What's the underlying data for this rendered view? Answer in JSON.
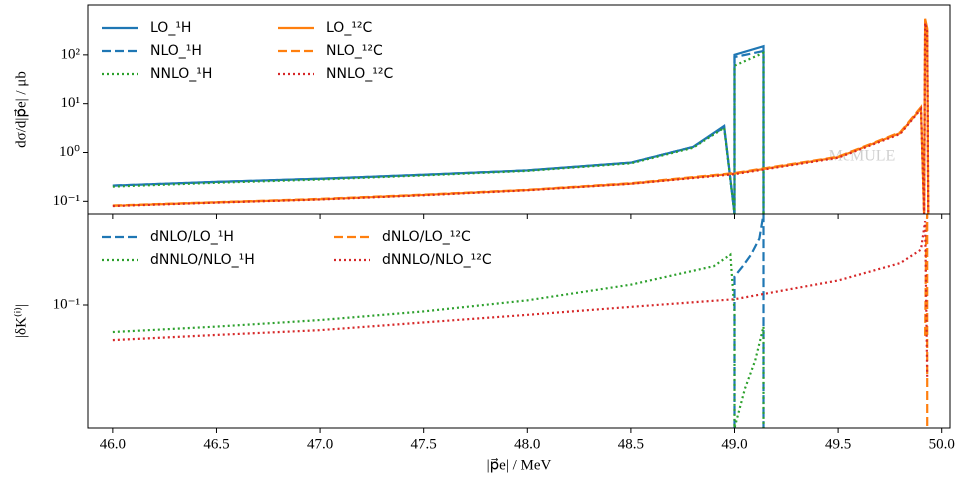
{
  "chart_data": [
    {
      "type": "line",
      "ylabel": "dσ/d|p⃗e| / μb",
      "log_y": true,
      "legend": "upper left",
      "watermark": "McMULE",
      "xlim": [
        45.88,
        50.04
      ],
      "xticks": [
        46,
        46.5,
        47,
        47.5,
        48,
        48.5,
        49,
        49.5,
        50
      ],
      "ylim": [
        0.055,
        1050
      ],
      "yticks": [
        {
          "value": 0.1,
          "label": "10⁻¹"
        },
        {
          "value": 1,
          "label": "10⁰"
        },
        {
          "value": 10,
          "label": "10¹"
        },
        {
          "value": 100,
          "label": "10²"
        }
      ],
      "series": [
        {
          "name": "LO_¹H",
          "color": "#1f77b4",
          "dash": "solid",
          "x": [
            46,
            46.5,
            47,
            47.5,
            48,
            48.5,
            48.8,
            48.95,
            49.0,
            49.0,
            49.14,
            49.14
          ],
          "values": [
            0.21,
            0.25,
            0.29,
            0.35,
            0.43,
            0.62,
            1.3,
            3.5,
            0.055,
            100,
            150,
            0.055
          ]
        },
        {
          "name": "NLO_¹H",
          "color": "#1f77b4",
          "dash": "dashed",
          "x": [
            46,
            46.5,
            47,
            47.5,
            48,
            48.5,
            48.8,
            48.95,
            49.0,
            49.0,
            49.14,
            49.14
          ],
          "values": [
            0.21,
            0.25,
            0.29,
            0.35,
            0.43,
            0.62,
            1.3,
            3.3,
            0.055,
            90,
            120,
            0.055
          ]
        },
        {
          "name": "NNLO_¹H",
          "color": "#2ca02c",
          "dash": "dotted",
          "x": [
            46,
            46.5,
            47,
            47.5,
            48,
            48.5,
            48.8,
            48.95,
            49.0,
            49.0,
            49.14,
            49.14
          ],
          "values": [
            0.2,
            0.24,
            0.28,
            0.34,
            0.42,
            0.6,
            1.25,
            3.2,
            0.055,
            60,
            110,
            0.055
          ]
        },
        {
          "name": "LO_¹²C",
          "color": "#ff7f0e",
          "dash": "solid",
          "x": [
            46,
            46.5,
            47,
            47.5,
            48,
            48.5,
            49,
            49.5,
            49.8,
            49.9,
            49.915,
            49.92,
            49.93,
            49.935
          ],
          "values": [
            0.081,
            0.095,
            0.11,
            0.135,
            0.17,
            0.23,
            0.37,
            0.8,
            2.5,
            8,
            0.055,
            550,
            350,
            0.055
          ]
        },
        {
          "name": "NLO_¹²C",
          "color": "#ff7f0e",
          "dash": "dashed",
          "x": [
            46,
            46.5,
            47,
            47.5,
            48,
            48.5,
            49,
            49.5,
            49.8,
            49.9,
            49.915,
            49.92,
            49.93,
            49.935
          ],
          "values": [
            0.082,
            0.096,
            0.112,
            0.137,
            0.172,
            0.235,
            0.38,
            0.82,
            2.6,
            8.5,
            0.055,
            500,
            320,
            0.055
          ]
        },
        {
          "name": "NNLO_¹²C",
          "color": "#d62728",
          "dash": "dotted",
          "x": [
            46,
            46.5,
            47,
            47.5,
            48,
            48.5,
            49,
            49.5,
            49.8,
            49.9,
            49.915,
            49.92,
            49.93,
            49.935
          ],
          "values": [
            0.08,
            0.094,
            0.109,
            0.133,
            0.168,
            0.228,
            0.36,
            0.78,
            2.4,
            7.8,
            0.055,
            450,
            300,
            0.055
          ]
        }
      ]
    },
    {
      "type": "line",
      "ylabel": "|δK⁽ⁱ⁾|",
      "xlabel": "|p⃗e| / MeV",
      "log_y": true,
      "legend": "upper left",
      "xlim": [
        45.88,
        50.04
      ],
      "xticks": [
        {
          "value": 46,
          "label": "46.0"
        },
        {
          "value": 46.5,
          "label": "46.5"
        },
        {
          "value": 47,
          "label": "47.0"
        },
        {
          "value": 47.5,
          "label": "47.5"
        },
        {
          "value": 48,
          "label": "48.0"
        },
        {
          "value": 48.5,
          "label": "48.5"
        },
        {
          "value": 49,
          "label": "49.0"
        },
        {
          "value": 49.5,
          "label": "49.5"
        },
        {
          "value": 50,
          "label": "50.0"
        }
      ],
      "ylim": [
        0.0131,
        0.45
      ],
      "yticks": [
        {
          "value": 0.1,
          "label": "10⁻¹"
        }
      ],
      "series": [
        {
          "name": "dNLO/LO_¹H",
          "color": "#1f77b4",
          "dash": "dashed",
          "x": [
            49.0,
            49.0,
            49.04,
            49.08,
            49.12,
            49.14,
            49.14
          ],
          "values": [
            0.0131,
            0.16,
            0.19,
            0.23,
            0.3,
            0.45,
            0.0131
          ]
        },
        {
          "name": "dNNLO/NLO_¹H",
          "color": "#2ca02c",
          "dash": "dotted",
          "x": [
            46,
            46.5,
            47,
            47.5,
            48,
            48.5,
            48.9,
            48.98,
            49.0,
            49.0,
            49.05,
            49.1,
            49.14,
            49.14
          ],
          "values": [
            0.064,
            0.07,
            0.078,
            0.09,
            0.108,
            0.14,
            0.19,
            0.23,
            0.09,
            0.0131,
            0.025,
            0.04,
            0.07,
            0.0131
          ]
        },
        {
          "name": "dNLO/LO_¹²C",
          "color": "#ff7f0e",
          "dash": "dashed",
          "x": [
            49.92,
            49.925,
            49.93,
            49.93
          ],
          "values": [
            0.06,
            0.3,
            0.45,
            0.0131
          ]
        },
        {
          "name": "dNNLO/NLO_¹²C",
          "color": "#d62728",
          "dash": "dotted",
          "x": [
            46,
            46.5,
            47,
            47.5,
            48,
            48.5,
            49,
            49.5,
            49.8,
            49.9,
            49.92,
            49.93
          ],
          "values": [
            0.056,
            0.061,
            0.066,
            0.075,
            0.085,
            0.097,
            0.11,
            0.15,
            0.2,
            0.25,
            0.4,
            0.03
          ]
        }
      ]
    }
  ]
}
